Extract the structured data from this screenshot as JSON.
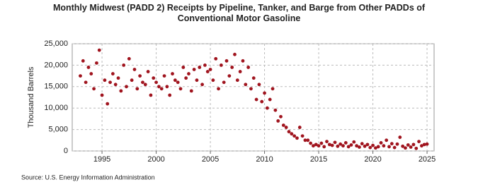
{
  "chart_data": {
    "type": "scatter",
    "title": "Monthly Midwest (PADD 2) Receipts by Pipeline, Tanker, and Barge from Other PADDs of Conventional Motor Gasoline",
    "y_label": "Thousand Barrels",
    "source": "Source: U.S. Energy Information Administration",
    "xlim": [
      1992.25,
      2025.65
    ],
    "xticks": [
      1995,
      2000,
      2005,
      2010,
      2015,
      2020,
      2025
    ],
    "ylim": [
      0,
      25000
    ],
    "yticks": [
      0,
      {
        "value": 5000,
        "label": "5,000"
      },
      {
        "value": 10000,
        "label": "10,000"
      },
      {
        "value": 15000,
        "label": "15,000"
      },
      {
        "value": 20000,
        "label": "20,000"
      },
      {
        "value": 25000,
        "label": "25,000"
      }
    ],
    "grid": true,
    "color": "#a0141e",
    "x": [
      1993,
      1993.25,
      1993.5,
      1993.75,
      1994,
      1994.25,
      1994.5,
      1994.75,
      1995,
      1995.25,
      1995.5,
      1995.75,
      1996,
      1996.25,
      1996.5,
      1996.75,
      1997,
      1997.25,
      1997.5,
      1997.75,
      1998,
      1998.25,
      1998.5,
      1998.75,
      1999,
      1999.25,
      1999.5,
      1999.75,
      2000,
      2000.25,
      2000.5,
      2000.75,
      2001,
      2001.25,
      2001.5,
      2001.75,
      2002,
      2002.25,
      2002.5,
      2002.75,
      2003,
      2003.25,
      2003.5,
      2003.75,
      2004,
      2004.25,
      2004.5,
      2004.75,
      2005,
      2005.25,
      2005.5,
      2005.75,
      2006,
      2006.25,
      2006.5,
      2006.75,
      2007,
      2007.25,
      2007.5,
      2007.75,
      2008,
      2008.25,
      2008.5,
      2008.75,
      2009,
      2009.25,
      2009.5,
      2009.75,
      2010,
      2010.25,
      2010.5,
      2010.75,
      2011,
      2011.25,
      2011.5,
      2011.75,
      2012,
      2012.25,
      2012.5,
      2012.75,
      2013,
      2013.25,
      2013.5,
      2013.75,
      2014,
      2014.25,
      2014.5,
      2014.75,
      2015,
      2015.25,
      2015.5,
      2015.75,
      2016,
      2016.25,
      2016.5,
      2016.75,
      2017,
      2017.25,
      2017.5,
      2017.75,
      2018,
      2018.25,
      2018.5,
      2018.75,
      2019,
      2019.25,
      2019.5,
      2019.75,
      2020,
      2020.25,
      2020.5,
      2020.75,
      2021,
      2021.25,
      2021.5,
      2021.75,
      2022,
      2022.25,
      2022.5,
      2022.75,
      2023,
      2023.25,
      2023.5,
      2023.75,
      2024,
      2024.25,
      2024.5,
      2024.75,
      2025
    ],
    "values": [
      17500,
      21000,
      16000,
      19500,
      18000,
      14500,
      20500,
      23500,
      13000,
      16500,
      11000,
      16000,
      18000,
      15500,
      17000,
      14000,
      20000,
      15000,
      21500,
      16500,
      19000,
      14500,
      17500,
      16000,
      15500,
      18500,
      13000,
      17000,
      16000,
      15000,
      14500,
      17500,
      15000,
      13000,
      18000,
      16500,
      16000,
      14500,
      19500,
      17000,
      18000,
      14000,
      19000,
      16500,
      19500,
      15500,
      20000,
      18500,
      19000,
      16500,
      21500,
      14500,
      20000,
      16000,
      21000,
      17500,
      19500,
      22500,
      16500,
      18500,
      21000,
      15500,
      19500,
      14500,
      17000,
      12000,
      15500,
      11500,
      13500,
      10000,
      12000,
      14500,
      9500,
      7000,
      8000,
      6000,
      5500,
      4500,
      4000,
      3500,
      3000,
      5500,
      3500,
      2500,
      2500,
      1800,
      1200,
      1500,
      1200,
      1800,
      1000,
      2200,
      1500,
      1300,
      2000,
      1100,
      1600,
      1200,
      1900,
      1000,
      1400,
      2100,
      1200,
      900,
      1700,
      1100,
      1500,
      800,
      1300,
      700,
      1000,
      1900,
      1200,
      2500,
      1000,
      1700,
      800,
      1600,
      3200,
      1100,
      700,
      1400,
      900,
      1500,
      600,
      2200,
      1200,
      1500,
      1600
    ]
  }
}
